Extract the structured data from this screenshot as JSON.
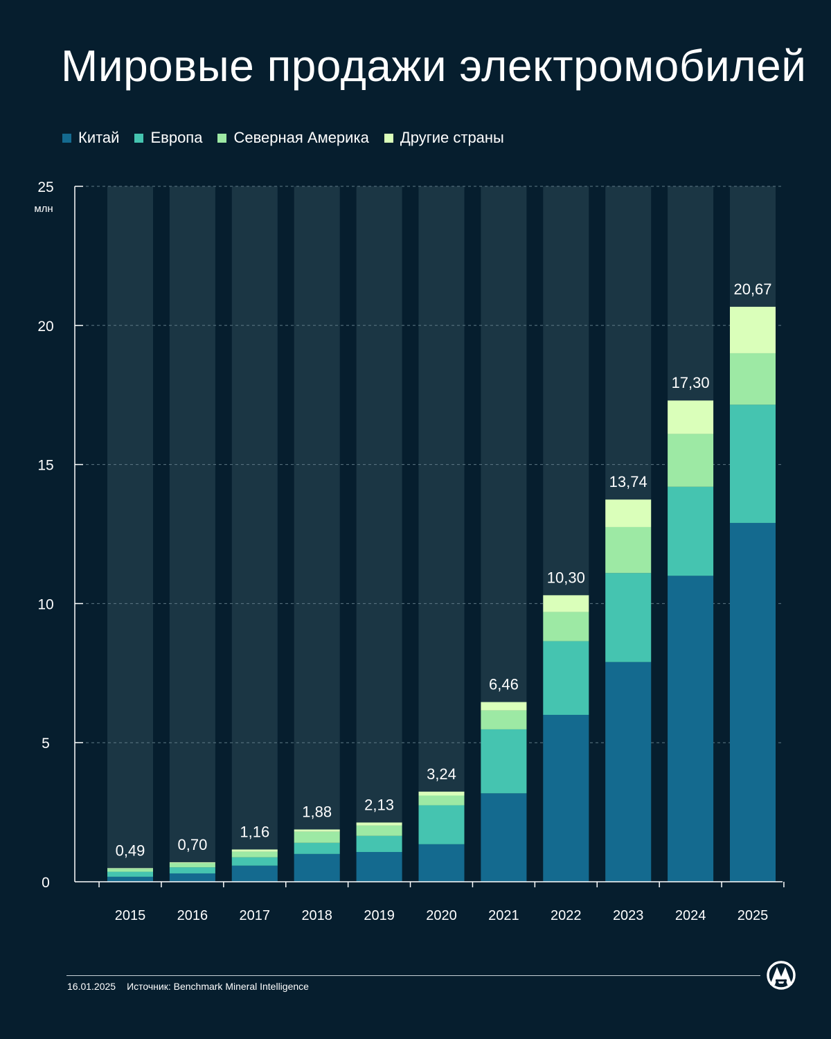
{
  "title": "Мировые продажи электромобилей",
  "footer": {
    "date": "16.01.2025",
    "source": "Источник: Benchmark Mineral Intelligence"
  },
  "logo_icon": "aa-agency-logo",
  "colors": {
    "background": "#061e2e",
    "column_bg": "#1b3644",
    "china": "#146a8f",
    "europe": "#45c4b0",
    "north_america": "#9de9a4",
    "other": "#daffba"
  },
  "chart_data": {
    "type": "bar",
    "stacked": true,
    "title": "Мировые продажи электромобилей",
    "ylabel": "млн",
    "xlabel": "",
    "ylim": [
      0,
      25
    ],
    "yticks": [
      "0",
      "5",
      "10",
      "15",
      "20",
      "25"
    ],
    "grid": true,
    "legend_position": "top-left",
    "categories": [
      "2015",
      "2016",
      "2017",
      "2018",
      "2019",
      "2020",
      "2021",
      "2022",
      "2023",
      "2024",
      "2025"
    ],
    "series": [
      {
        "name": "Китай",
        "color": "#146a8f",
        "values": [
          0.18,
          0.3,
          0.58,
          1.0,
          1.07,
          1.35,
          3.18,
          6.0,
          7.9,
          11.0,
          12.9
        ]
      },
      {
        "name": "Европа",
        "color": "#45c4b0",
        "values": [
          0.18,
          0.22,
          0.3,
          0.4,
          0.58,
          1.4,
          2.3,
          2.65,
          3.2,
          3.2,
          4.25
        ]
      },
      {
        "name": "Северная Америка",
        "color": "#9de9a4",
        "values": [
          0.11,
          0.15,
          0.2,
          0.4,
          0.37,
          0.35,
          0.68,
          1.05,
          1.65,
          1.9,
          1.85
        ]
      },
      {
        "name": "Другие страны",
        "color": "#daffba",
        "values": [
          0.02,
          0.03,
          0.08,
          0.08,
          0.11,
          0.14,
          0.3,
          0.6,
          0.99,
          1.2,
          1.67
        ]
      }
    ],
    "totals": [
      "0,49",
      "0,70",
      "1,16",
      "1,88",
      "2,13",
      "3,24",
      "6,46",
      "10,30",
      "13,74",
      "17,30",
      "20,67"
    ]
  }
}
